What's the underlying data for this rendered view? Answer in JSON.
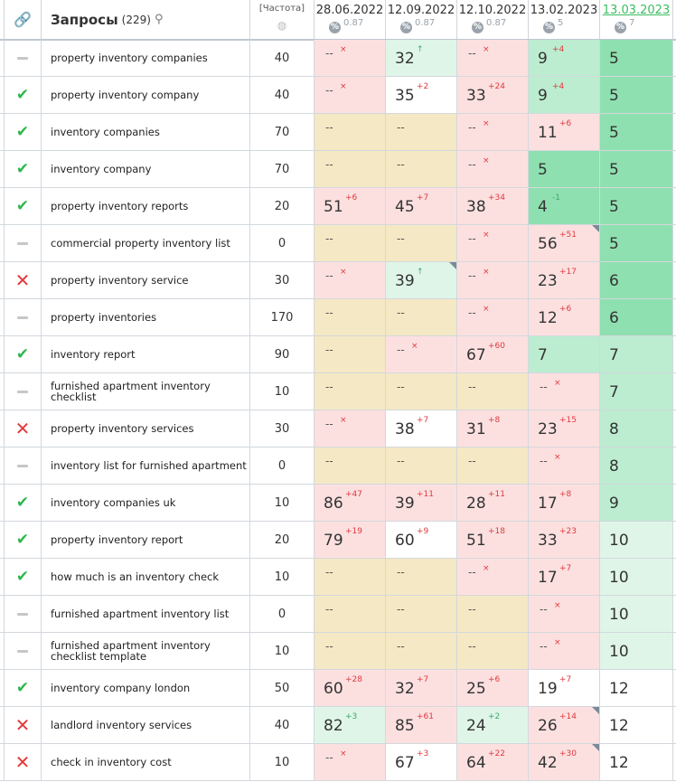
{
  "header": {
    "title": "Запросы",
    "count": "(229)",
    "freq_label": "[Частота]",
    "dates": [
      {
        "label": "28.06.2022",
        "pct": "0.87"
      },
      {
        "label": "12.09.2022",
        "pct": "0.87"
      },
      {
        "label": "12.10.2022",
        "pct": "0.87"
      },
      {
        "label": "13.02.2023",
        "pct": "5"
      },
      {
        "label": "13.03.2023",
        "pct": "7"
      }
    ],
    "pct_symbol": "%"
  },
  "rows": [
    {
      "status": "dash",
      "query": "property inventory companies",
      "freq": "40",
      "cells": [
        {
          "bg": "red",
          "v": "--",
          "c": "×",
          "d": "down"
        },
        {
          "bg": "lgreen",
          "v": "32",
          "c": "↑",
          "d": "up"
        },
        {
          "bg": "red",
          "v": "--",
          "c": "×",
          "d": "down"
        },
        {
          "bg": "mgreen",
          "v": "9",
          "c": "+4",
          "d": "down"
        },
        {
          "bg": "green",
          "v": "5",
          "c": "",
          "d": ""
        }
      ]
    },
    {
      "status": "ok",
      "query": "property inventory company",
      "freq": "40",
      "cells": [
        {
          "bg": "red",
          "v": "--",
          "c": "×",
          "d": "down"
        },
        {
          "bg": "white",
          "v": "35",
          "c": "+2",
          "d": "down"
        },
        {
          "bg": "red",
          "v": "33",
          "c": "+24",
          "d": "down"
        },
        {
          "bg": "mgreen",
          "v": "9",
          "c": "+4",
          "d": "down"
        },
        {
          "bg": "green",
          "v": "5",
          "c": "",
          "d": ""
        }
      ]
    },
    {
      "status": "ok",
      "query": "inventory companies",
      "freq": "70",
      "cells": [
        {
          "bg": "tan",
          "v": "--",
          "c": "",
          "d": ""
        },
        {
          "bg": "tan",
          "v": "--",
          "c": "",
          "d": ""
        },
        {
          "bg": "red",
          "v": "--",
          "c": "×",
          "d": "down"
        },
        {
          "bg": "red",
          "v": "11",
          "c": "+6",
          "d": "down"
        },
        {
          "bg": "green",
          "v": "5",
          "c": "",
          "d": ""
        }
      ]
    },
    {
      "status": "ok",
      "query": "inventory company",
      "freq": "70",
      "cells": [
        {
          "bg": "tan",
          "v": "--",
          "c": "",
          "d": ""
        },
        {
          "bg": "tan",
          "v": "--",
          "c": "",
          "d": ""
        },
        {
          "bg": "red",
          "v": "--",
          "c": "×",
          "d": "down"
        },
        {
          "bg": "green",
          "v": "5",
          "c": "",
          "d": ""
        },
        {
          "bg": "green",
          "v": "5",
          "c": "",
          "d": ""
        }
      ]
    },
    {
      "status": "ok",
      "query": "property inventory reports",
      "freq": "20",
      "cells": [
        {
          "bg": "red",
          "v": "51",
          "c": "+6",
          "d": "down"
        },
        {
          "bg": "red",
          "v": "45",
          "c": "+7",
          "d": "down"
        },
        {
          "bg": "red",
          "v": "38",
          "c": "+34",
          "d": "down"
        },
        {
          "bg": "green",
          "v": "4",
          "c": "-1",
          "d": "up"
        },
        {
          "bg": "green",
          "v": "5",
          "c": "",
          "d": ""
        }
      ]
    },
    {
      "status": "dash",
      "query": "commercial property inventory list",
      "freq": "0",
      "cells": [
        {
          "bg": "tan",
          "v": "--",
          "c": "",
          "d": ""
        },
        {
          "bg": "tan",
          "v": "--",
          "c": "",
          "d": ""
        },
        {
          "bg": "red",
          "v": "--",
          "c": "×",
          "d": "down"
        },
        {
          "bg": "red",
          "v": "56",
          "c": "+51",
          "d": "down",
          "corner": true
        },
        {
          "bg": "green",
          "v": "5",
          "c": "",
          "d": ""
        }
      ]
    },
    {
      "status": "x",
      "query": "property inventory service",
      "freq": "30",
      "cells": [
        {
          "bg": "red",
          "v": "--",
          "c": "×",
          "d": "down"
        },
        {
          "bg": "lgreen",
          "v": "39",
          "c": "↑",
          "d": "up",
          "corner": true
        },
        {
          "bg": "red",
          "v": "--",
          "c": "×",
          "d": "down"
        },
        {
          "bg": "red",
          "v": "23",
          "c": "+17",
          "d": "down"
        },
        {
          "bg": "green",
          "v": "6",
          "c": "",
          "d": ""
        }
      ]
    },
    {
      "status": "dash",
      "query": "property inventories",
      "freq": "170",
      "cells": [
        {
          "bg": "tan",
          "v": "--",
          "c": "",
          "d": ""
        },
        {
          "bg": "tan",
          "v": "--",
          "c": "",
          "d": ""
        },
        {
          "bg": "red",
          "v": "--",
          "c": "×",
          "d": "down"
        },
        {
          "bg": "red",
          "v": "12",
          "c": "+6",
          "d": "down"
        },
        {
          "bg": "green",
          "v": "6",
          "c": "",
          "d": ""
        }
      ]
    },
    {
      "status": "ok",
      "query": "inventory report",
      "freq": "90",
      "cells": [
        {
          "bg": "tan",
          "v": "--",
          "c": "",
          "d": ""
        },
        {
          "bg": "red",
          "v": "--",
          "c": "×",
          "d": "down"
        },
        {
          "bg": "red",
          "v": "67",
          "c": "+60",
          "d": "down"
        },
        {
          "bg": "mgreen",
          "v": "7",
          "c": "",
          "d": ""
        },
        {
          "bg": "mgreen",
          "v": "7",
          "c": "",
          "d": ""
        }
      ]
    },
    {
      "status": "dash",
      "query": "furnished apartment inventory checklist",
      "freq": "10",
      "cells": [
        {
          "bg": "tan",
          "v": "--",
          "c": "",
          "d": ""
        },
        {
          "bg": "tan",
          "v": "--",
          "c": "",
          "d": ""
        },
        {
          "bg": "tan",
          "v": "--",
          "c": "",
          "d": ""
        },
        {
          "bg": "red",
          "v": "--",
          "c": "×",
          "d": "down"
        },
        {
          "bg": "mgreen",
          "v": "7",
          "c": "",
          "d": ""
        }
      ]
    },
    {
      "status": "x",
      "query": "property inventory services",
      "freq": "30",
      "cells": [
        {
          "bg": "red",
          "v": "--",
          "c": "×",
          "d": "down"
        },
        {
          "bg": "white",
          "v": "38",
          "c": "+7",
          "d": "down"
        },
        {
          "bg": "red",
          "v": "31",
          "c": "+8",
          "d": "down"
        },
        {
          "bg": "red",
          "v": "23",
          "c": "+15",
          "d": "down"
        },
        {
          "bg": "mgreen",
          "v": "8",
          "c": "",
          "d": ""
        }
      ]
    },
    {
      "status": "dash",
      "query": "inventory list for furnished apartment",
      "freq": "0",
      "cells": [
        {
          "bg": "tan",
          "v": "--",
          "c": "",
          "d": ""
        },
        {
          "bg": "tan",
          "v": "--",
          "c": "",
          "d": ""
        },
        {
          "bg": "tan",
          "v": "--",
          "c": "",
          "d": ""
        },
        {
          "bg": "red",
          "v": "--",
          "c": "×",
          "d": "down"
        },
        {
          "bg": "mgreen",
          "v": "8",
          "c": "",
          "d": ""
        }
      ]
    },
    {
      "status": "ok",
      "query": "inventory companies uk",
      "freq": "10",
      "cells": [
        {
          "bg": "red",
          "v": "86",
          "c": "+47",
          "d": "down"
        },
        {
          "bg": "red",
          "v": "39",
          "c": "+11",
          "d": "down"
        },
        {
          "bg": "red",
          "v": "28",
          "c": "+11",
          "d": "down"
        },
        {
          "bg": "red",
          "v": "17",
          "c": "+8",
          "d": "down"
        },
        {
          "bg": "mgreen",
          "v": "9",
          "c": "",
          "d": ""
        }
      ]
    },
    {
      "status": "ok",
      "query": "property inventory report",
      "freq": "20",
      "cells": [
        {
          "bg": "red",
          "v": "79",
          "c": "+19",
          "d": "down"
        },
        {
          "bg": "white",
          "v": "60",
          "c": "+9",
          "d": "down"
        },
        {
          "bg": "red",
          "v": "51",
          "c": "+18",
          "d": "down"
        },
        {
          "bg": "red",
          "v": "33",
          "c": "+23",
          "d": "down"
        },
        {
          "bg": "lgreen",
          "v": "10",
          "c": "",
          "d": ""
        }
      ]
    },
    {
      "status": "ok",
      "query": "how much is an inventory check",
      "freq": "10",
      "cells": [
        {
          "bg": "tan",
          "v": "--",
          "c": "",
          "d": ""
        },
        {
          "bg": "tan",
          "v": "--",
          "c": "",
          "d": ""
        },
        {
          "bg": "red",
          "v": "--",
          "c": "×",
          "d": "down"
        },
        {
          "bg": "red",
          "v": "17",
          "c": "+7",
          "d": "down"
        },
        {
          "bg": "lgreen",
          "v": "10",
          "c": "",
          "d": ""
        }
      ]
    },
    {
      "status": "dash",
      "query": "furnished apartment inventory list",
      "freq": "0",
      "cells": [
        {
          "bg": "tan",
          "v": "--",
          "c": "",
          "d": ""
        },
        {
          "bg": "tan",
          "v": "--",
          "c": "",
          "d": ""
        },
        {
          "bg": "tan",
          "v": "--",
          "c": "",
          "d": ""
        },
        {
          "bg": "red",
          "v": "--",
          "c": "×",
          "d": "down"
        },
        {
          "bg": "lgreen",
          "v": "10",
          "c": "",
          "d": ""
        }
      ]
    },
    {
      "status": "dash",
      "query": "furnished apartment inventory checklist template",
      "freq": "10",
      "cells": [
        {
          "bg": "tan",
          "v": "--",
          "c": "",
          "d": ""
        },
        {
          "bg": "tan",
          "v": "--",
          "c": "",
          "d": ""
        },
        {
          "bg": "tan",
          "v": "--",
          "c": "",
          "d": ""
        },
        {
          "bg": "red",
          "v": "--",
          "c": "×",
          "d": "down"
        },
        {
          "bg": "lgreen",
          "v": "10",
          "c": "",
          "d": ""
        }
      ]
    },
    {
      "status": "ok",
      "query": "inventory company london",
      "freq": "50",
      "cells": [
        {
          "bg": "red",
          "v": "60",
          "c": "+28",
          "d": "down"
        },
        {
          "bg": "red",
          "v": "32",
          "c": "+7",
          "d": "down"
        },
        {
          "bg": "red",
          "v": "25",
          "c": "+6",
          "d": "down"
        },
        {
          "bg": "white",
          "v": "19",
          "c": "+7",
          "d": "down"
        },
        {
          "bg": "white",
          "v": "12",
          "c": "",
          "d": ""
        }
      ]
    },
    {
      "status": "x",
      "query": "landlord inventory services",
      "freq": "40",
      "cells": [
        {
          "bg": "lgreen",
          "v": "82",
          "c": "+3",
          "d": "up"
        },
        {
          "bg": "red",
          "v": "85",
          "c": "+61",
          "d": "down"
        },
        {
          "bg": "lgreen",
          "v": "24",
          "c": "+2",
          "d": "up"
        },
        {
          "bg": "red",
          "v": "26",
          "c": "+14",
          "d": "down",
          "corner": true
        },
        {
          "bg": "white",
          "v": "12",
          "c": "",
          "d": ""
        }
      ]
    },
    {
      "status": "x",
      "query": "check in inventory cost",
      "freq": "10",
      "cells": [
        {
          "bg": "red",
          "v": "--",
          "c": "×",
          "d": "down"
        },
        {
          "bg": "white",
          "v": "67",
          "c": "+3",
          "d": "down"
        },
        {
          "bg": "red",
          "v": "64",
          "c": "+22",
          "d": "down"
        },
        {
          "bg": "red",
          "v": "42",
          "c": "+30",
          "d": "down",
          "corner": true
        },
        {
          "bg": "white",
          "v": "12",
          "c": "",
          "d": ""
        }
      ]
    }
  ]
}
